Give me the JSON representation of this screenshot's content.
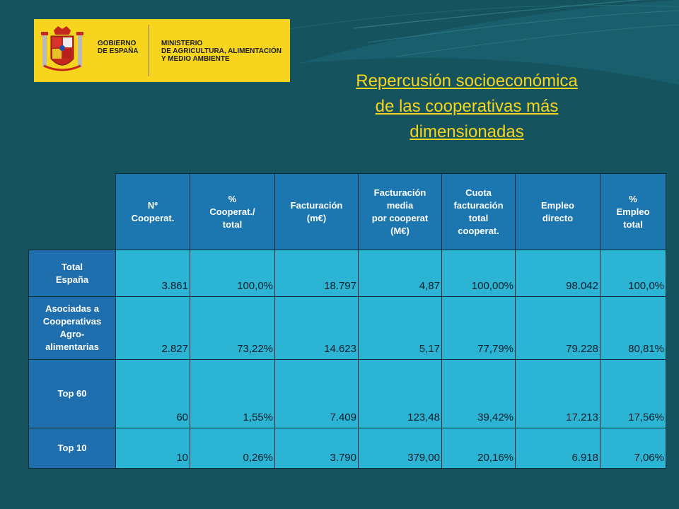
{
  "logo": {
    "gobierno_lines": [
      "GOBIERNO",
      "DE ESPAÑA"
    ],
    "ministerio_lines": [
      "MINISTERIO",
      "DE AGRICULTURA, ALIMENTACIÓN",
      "Y MEDIO AMBIENTE"
    ]
  },
  "title_lines": [
    "Repercusión socioeconómica",
    "de las cooperativas más",
    "dimensionadas"
  ],
  "colors": {
    "background": "#15535f",
    "title": "#f7d51e",
    "logo_bg": "#f7d51e",
    "header_bg": "#1c76b0",
    "cell_bg": "#2cb4d4"
  },
  "table": {
    "headers": [
      [
        "Nº",
        "Cooperat."
      ],
      [
        "%",
        "Cooperat./",
        "total"
      ],
      [
        "Facturación",
        "(m€)"
      ],
      [
        "Facturación",
        "media",
        "por cooperat",
        "(M€)"
      ],
      [
        "Cuota",
        "facturación",
        "total",
        "cooperat."
      ],
      [
        "Empleo",
        "directo"
      ],
      [
        "%",
        "Empleo",
        "total"
      ]
    ],
    "rows": [
      {
        "label": [
          "Total",
          "España"
        ],
        "values": [
          "3.861",
          "100,0%",
          "18.797",
          "4,87",
          "100,00%",
          "98.042",
          "100,0%"
        ]
      },
      {
        "label": [
          "Asociadas a",
          "Cooperativas",
          "Agro-",
          "alimentarias"
        ],
        "values": [
          "2.827",
          "73,22%",
          "14.623",
          "5,17",
          "77,79%",
          "79.228",
          "80,81%"
        ]
      },
      {
        "label": [
          "Top 60"
        ],
        "values": [
          "60",
          "1,55%",
          "7.409",
          "123,48",
          "39,42%",
          "17.213",
          "17,56%"
        ]
      },
      {
        "label": [
          "Top 10"
        ],
        "values": [
          "10",
          "0,26%",
          "3.790",
          "379,00",
          "20,16%",
          "6.918",
          "7,06%"
        ]
      }
    ]
  }
}
